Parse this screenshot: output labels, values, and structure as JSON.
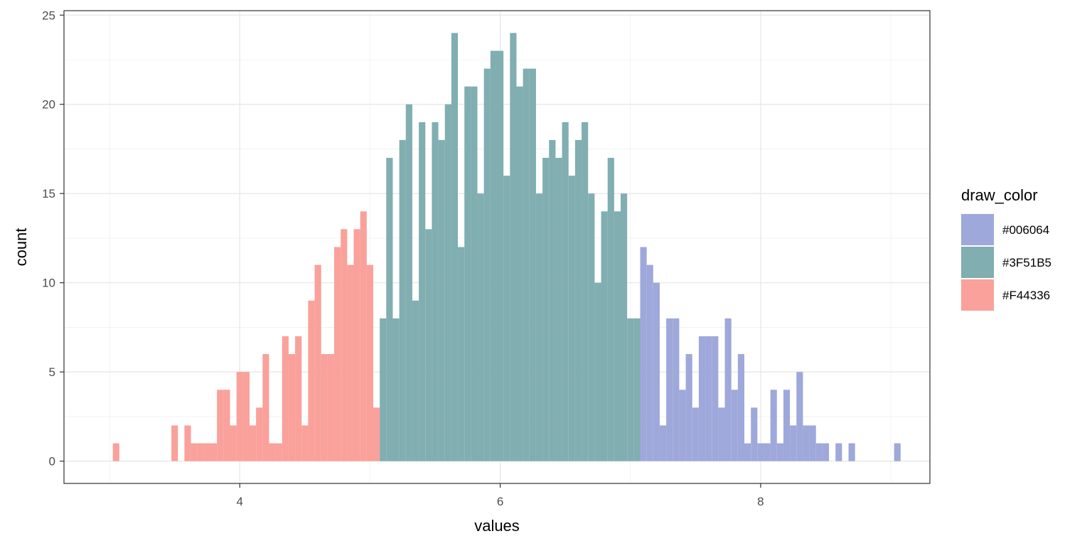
{
  "chart_data": {
    "type": "histogram",
    "xlabel": "values",
    "ylabel": "count",
    "xlim": [
      2.65,
      9.3
    ],
    "ylim": [
      -1.25,
      25.25
    ],
    "x_ticks": [
      4,
      6,
      8
    ],
    "y_ticks": [
      0,
      5,
      10,
      15,
      20,
      25
    ],
    "x_minor_ticks": [
      3,
      5,
      7,
      9
    ],
    "y_minor_ticks": [
      2.5,
      7.5,
      12.5,
      17.5,
      22.5
    ],
    "grid": true,
    "legend": {
      "title": "draw_color",
      "position": "right",
      "entries": [
        {
          "label": "#006064",
          "color": "#9fa8da"
        },
        {
          "label": "#3F51B5",
          "color": "#80aeb1"
        },
        {
          "label": "#F44336",
          "color": "#f9a19a"
        }
      ]
    },
    "bin_width": 0.05,
    "series": [
      {
        "name": "#F44336",
        "color": "#f9a19a",
        "bins": [
          {
            "x": 3.05,
            "count": 1
          },
          {
            "x": 3.5,
            "count": 2
          },
          {
            "x": 3.6,
            "count": 2
          },
          {
            "x": 3.65,
            "count": 1
          },
          {
            "x": 3.7,
            "count": 1
          },
          {
            "x": 3.75,
            "count": 1
          },
          {
            "x": 3.8,
            "count": 1
          },
          {
            "x": 3.85,
            "count": 4
          },
          {
            "x": 3.9,
            "count": 4
          },
          {
            "x": 3.95,
            "count": 2
          },
          {
            "x": 4.0,
            "count": 5
          },
          {
            "x": 4.05,
            "count": 5
          },
          {
            "x": 4.1,
            "count": 2
          },
          {
            "x": 4.15,
            "count": 3
          },
          {
            "x": 4.2,
            "count": 6
          },
          {
            "x": 4.25,
            "count": 1
          },
          {
            "x": 4.3,
            "count": 1
          },
          {
            "x": 4.35,
            "count": 7
          },
          {
            "x": 4.4,
            "count": 6
          },
          {
            "x": 4.45,
            "count": 7
          },
          {
            "x": 4.5,
            "count": 2
          },
          {
            "x": 4.55,
            "count": 9
          },
          {
            "x": 4.6,
            "count": 11
          },
          {
            "x": 4.65,
            "count": 6
          },
          {
            "x": 4.7,
            "count": 6
          },
          {
            "x": 4.75,
            "count": 12
          },
          {
            "x": 4.8,
            "count": 13
          },
          {
            "x": 4.85,
            "count": 11
          },
          {
            "x": 4.9,
            "count": 13
          },
          {
            "x": 4.95,
            "count": 14
          },
          {
            "x": 5.0,
            "count": 11
          },
          {
            "x": 5.05,
            "count": 3
          }
        ]
      },
      {
        "name": "#3F51B5",
        "color": "#80aeb1",
        "bins": [
          {
            "x": 5.1,
            "count": 8
          },
          {
            "x": 5.15,
            "count": 17
          },
          {
            "x": 5.2,
            "count": 8
          },
          {
            "x": 5.25,
            "count": 18
          },
          {
            "x": 5.3,
            "count": 20
          },
          {
            "x": 5.35,
            "count": 9
          },
          {
            "x": 5.4,
            "count": 19
          },
          {
            "x": 5.45,
            "count": 13
          },
          {
            "x": 5.5,
            "count": 19
          },
          {
            "x": 5.55,
            "count": 18
          },
          {
            "x": 5.6,
            "count": 20
          },
          {
            "x": 5.65,
            "count": 24
          },
          {
            "x": 5.7,
            "count": 12
          },
          {
            "x": 5.75,
            "count": 21
          },
          {
            "x": 5.8,
            "count": 21
          },
          {
            "x": 5.85,
            "count": 15
          },
          {
            "x": 5.9,
            "count": 22
          },
          {
            "x": 5.95,
            "count": 23
          },
          {
            "x": 6.0,
            "count": 23
          },
          {
            "x": 6.05,
            "count": 16
          },
          {
            "x": 6.1,
            "count": 24
          },
          {
            "x": 6.15,
            "count": 21
          },
          {
            "x": 6.2,
            "count": 22
          },
          {
            "x": 6.25,
            "count": 22
          },
          {
            "x": 6.3,
            "count": 15
          },
          {
            "x": 6.35,
            "count": 17
          },
          {
            "x": 6.4,
            "count": 18
          },
          {
            "x": 6.45,
            "count": 17
          },
          {
            "x": 6.5,
            "count": 19
          },
          {
            "x": 6.55,
            "count": 16
          },
          {
            "x": 6.6,
            "count": 18
          },
          {
            "x": 6.65,
            "count": 19
          },
          {
            "x": 6.7,
            "count": 15
          },
          {
            "x": 6.75,
            "count": 10
          },
          {
            "x": 6.8,
            "count": 14
          },
          {
            "x": 6.85,
            "count": 17
          },
          {
            "x": 6.9,
            "count": 14
          },
          {
            "x": 6.95,
            "count": 15
          },
          {
            "x": 7.0,
            "count": 8
          },
          {
            "x": 7.05,
            "count": 8
          }
        ]
      },
      {
        "name": "#006064",
        "color": "#9fa8da",
        "bins": [
          {
            "x": 7.1,
            "count": 12
          },
          {
            "x": 7.15,
            "count": 11
          },
          {
            "x": 7.2,
            "count": 10
          },
          {
            "x": 7.25,
            "count": 2
          },
          {
            "x": 7.3,
            "count": 8
          },
          {
            "x": 7.35,
            "count": 8
          },
          {
            "x": 7.4,
            "count": 4
          },
          {
            "x": 7.45,
            "count": 6
          },
          {
            "x": 7.5,
            "count": 3
          },
          {
            "x": 7.55,
            "count": 7
          },
          {
            "x": 7.6,
            "count": 7
          },
          {
            "x": 7.65,
            "count": 7
          },
          {
            "x": 7.7,
            "count": 3
          },
          {
            "x": 7.75,
            "count": 8
          },
          {
            "x": 7.8,
            "count": 4
          },
          {
            "x": 7.85,
            "count": 6
          },
          {
            "x": 7.9,
            "count": 1
          },
          {
            "x": 7.95,
            "count": 3
          },
          {
            "x": 8.0,
            "count": 1
          },
          {
            "x": 8.05,
            "count": 1
          },
          {
            "x": 8.1,
            "count": 4
          },
          {
            "x": 8.15,
            "count": 1
          },
          {
            "x": 8.2,
            "count": 4
          },
          {
            "x": 8.25,
            "count": 2
          },
          {
            "x": 8.3,
            "count": 5
          },
          {
            "x": 8.35,
            "count": 2
          },
          {
            "x": 8.4,
            "count": 2
          },
          {
            "x": 8.45,
            "count": 1
          },
          {
            "x": 8.5,
            "count": 1
          },
          {
            "x": 8.6,
            "count": 1
          },
          {
            "x": 8.7,
            "count": 1
          },
          {
            "x": 9.05,
            "count": 1
          }
        ]
      }
    ]
  }
}
